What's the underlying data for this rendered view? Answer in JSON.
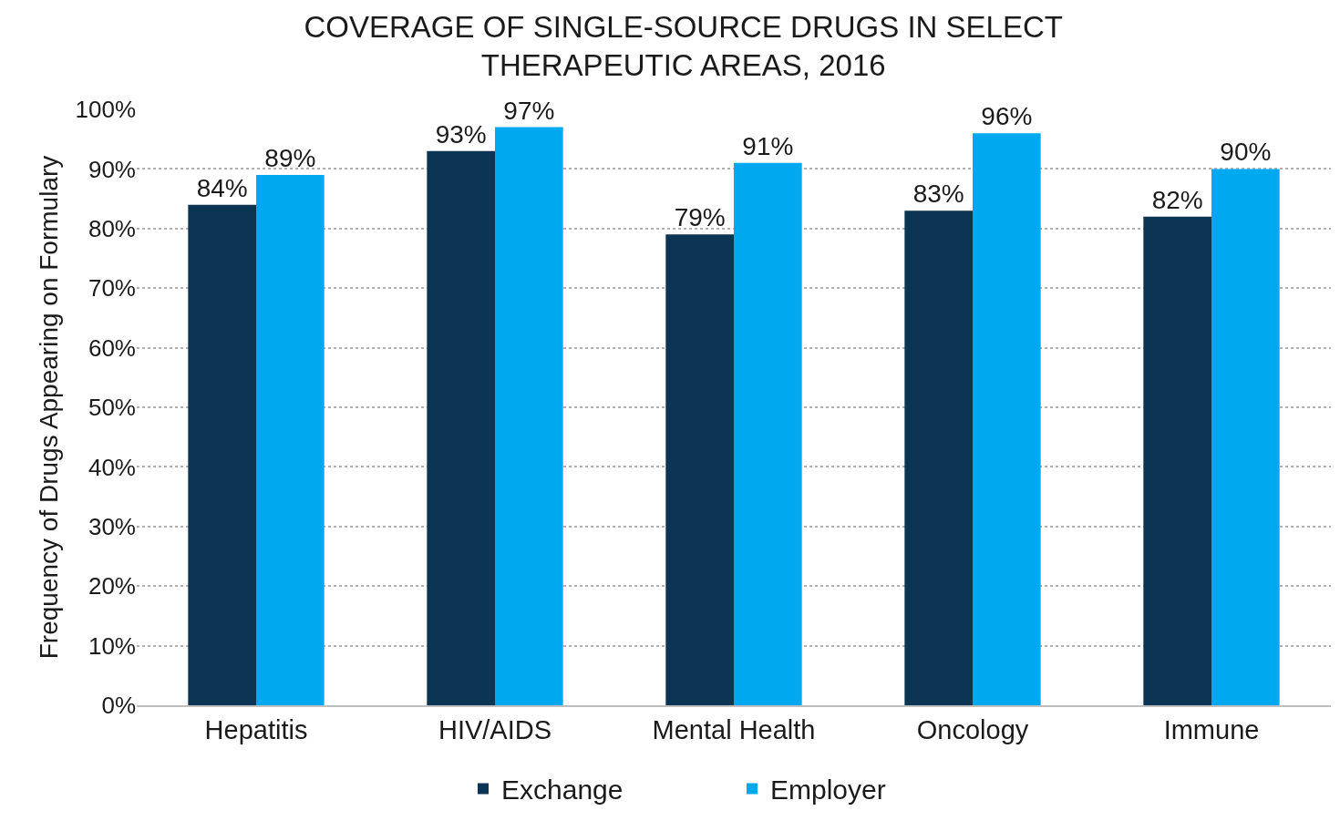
{
  "chart_data": {
    "type": "bar",
    "title": "COVERAGE OF SINGLE-SOURCE DRUGS IN SELECT\nTHERAPEUTIC AREAS, 2016",
    "ylabel": "Frequency of Drugs Appearing on Formulary",
    "categories": [
      "Hepatitis",
      "HIV/AIDS",
      "Mental Health",
      "Oncology",
      "Immune"
    ],
    "series": [
      {
        "name": "Exchange",
        "color": "#0b3552",
        "values": [
          84,
          93,
          79,
          83,
          82
        ],
        "value_labels": [
          "84%",
          "93%",
          "79%",
          "83%",
          "82%"
        ]
      },
      {
        "name": "Employer",
        "color": "#00a8f0",
        "values": [
          89,
          97,
          91,
          96,
          90
        ],
        "value_labels": [
          "89%",
          "97%",
          "91%",
          "96%",
          "90%"
        ]
      }
    ],
    "ylim": [
      0,
      100
    ],
    "yticks": [
      {
        "value": 0,
        "label": "0%"
      },
      {
        "value": 10,
        "label": "10%"
      },
      {
        "value": 20,
        "label": "20%"
      },
      {
        "value": 30,
        "label": "30%"
      },
      {
        "value": 40,
        "label": "40%"
      },
      {
        "value": 50,
        "label": "50%"
      },
      {
        "value": 60,
        "label": "60%"
      },
      {
        "value": 70,
        "label": "70%"
      },
      {
        "value": 80,
        "label": "80%"
      },
      {
        "value": 90,
        "label": "90%"
      },
      {
        "value": 100,
        "label": "100%"
      }
    ],
    "grid": "y",
    "legend": "bottom"
  }
}
